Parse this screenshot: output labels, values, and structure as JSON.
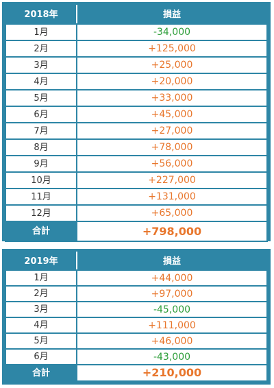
{
  "colors": {
    "header_bg": "#2e86a6",
    "positive": "#e8762c",
    "negative": "#2e9e3a"
  },
  "tables": [
    {
      "year_label": "2018年",
      "value_header": "損益",
      "rows": [
        {
          "month": "1月",
          "value": "-34,000",
          "sign": "neg"
        },
        {
          "month": "2月",
          "value": "+125,000",
          "sign": "pos"
        },
        {
          "month": "3月",
          "value": "+25,000",
          "sign": "pos"
        },
        {
          "month": "4月",
          "value": "+20,000",
          "sign": "pos"
        },
        {
          "month": "5月",
          "value": "+33,000",
          "sign": "pos"
        },
        {
          "month": "6月",
          "value": "+45,000",
          "sign": "pos"
        },
        {
          "month": "7月",
          "value": "+27,000",
          "sign": "pos"
        },
        {
          "month": "8月",
          "value": "+78,000",
          "sign": "pos"
        },
        {
          "month": "9月",
          "value": "+56,000",
          "sign": "pos"
        },
        {
          "month": "10月",
          "value": "+227,000",
          "sign": "pos"
        },
        {
          "month": "11月",
          "value": "+131,000",
          "sign": "pos"
        },
        {
          "month": "12月",
          "value": "+65,000",
          "sign": "pos"
        }
      ],
      "total_label": "合計",
      "total_value": "+798,000"
    },
    {
      "year_label": "2019年",
      "value_header": "損益",
      "rows": [
        {
          "month": "1月",
          "value": "+44,000",
          "sign": "pos"
        },
        {
          "month": "2月",
          "value": "+97,000",
          "sign": "pos"
        },
        {
          "month": "3月",
          "value": "-45,000",
          "sign": "neg"
        },
        {
          "month": "4月",
          "value": "+111,000",
          "sign": "pos"
        },
        {
          "month": "5月",
          "value": "+46,000",
          "sign": "pos"
        },
        {
          "month": "6月",
          "value": "-43,000",
          "sign": "neg"
        }
      ],
      "total_label": "合計",
      "total_value": "+210,000"
    }
  ]
}
